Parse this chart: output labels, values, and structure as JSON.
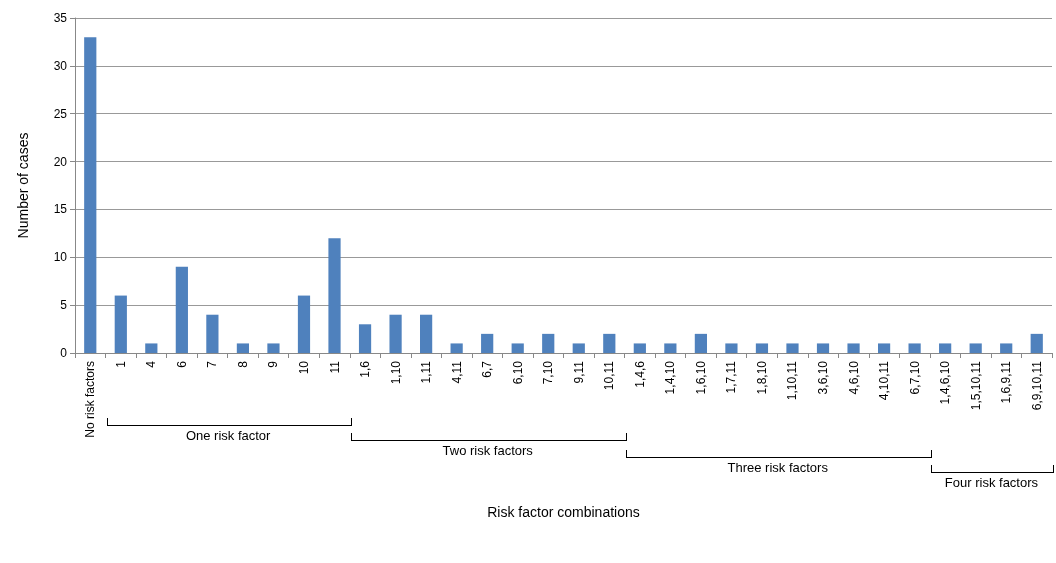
{
  "chart_data": {
    "type": "bar",
    "xlabel": "Risk factor combinations",
    "ylabel": "Number of cases",
    "categories": [
      "No risk factors",
      "1",
      "4",
      "6",
      "7",
      "8",
      "9",
      "10",
      "11",
      "1,6",
      "1,10",
      "1,11",
      "4,11",
      "6,7",
      "6,10",
      "7,10",
      "9,11",
      "10,11",
      "1,4,6",
      "1,4,10",
      "1,6,10",
      "1,7,11",
      "1,8,10",
      "1,10,11",
      "3,6,10",
      "4,6,10",
      "4,10,11",
      "6,7,10",
      "1,4,6,10",
      "1,5,10,11",
      "1,6,9,11",
      "6,9,10,11"
    ],
    "values": [
      33,
      6,
      1,
      9,
      4,
      1,
      1,
      6,
      12,
      3,
      4,
      4,
      1,
      2,
      1,
      2,
      1,
      2,
      1,
      1,
      2,
      1,
      1,
      1,
      1,
      1,
      1,
      1,
      1,
      1,
      1,
      2
    ],
    "color": "#4f81bd",
    "ylim": [
      0,
      35
    ],
    "yticks": [
      0,
      5,
      10,
      15,
      20,
      25,
      30,
      35
    ],
    "grid": "y",
    "annotations": [
      "One risk factor",
      "Two risk factors",
      "Three risk factors",
      "Four risk factors"
    ]
  }
}
